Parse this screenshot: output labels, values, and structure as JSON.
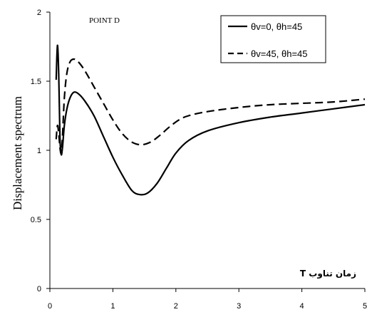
{
  "chart_data": {
    "type": "line",
    "title": "POINT  D",
    "xlabel": "T زمان تناوب",
    "ylabel": "Displacement spectrum",
    "xlim": [
      0,
      5
    ],
    "ylim": [
      0,
      2
    ],
    "x_ticks": [
      "0",
      "1",
      "2",
      "3",
      "4",
      "5"
    ],
    "y_ticks": [
      "0",
      "0.5",
      "1",
      "1.5",
      "2"
    ],
    "grid": false,
    "legend_position": "top-right",
    "series": [
      {
        "name": "θv=0, θh=45",
        "line_style": "solid",
        "color": "#000000",
        "points": [
          [
            0.1,
            1.51
          ],
          [
            0.12,
            1.76
          ],
          [
            0.14,
            1.55
          ],
          [
            0.16,
            1.1
          ],
          [
            0.18,
            0.97
          ],
          [
            0.2,
            1.02
          ],
          [
            0.23,
            1.18
          ],
          [
            0.27,
            1.3
          ],
          [
            0.32,
            1.38
          ],
          [
            0.38,
            1.42
          ],
          [
            0.45,
            1.41
          ],
          [
            0.55,
            1.36
          ],
          [
            0.7,
            1.25
          ],
          [
            0.85,
            1.1
          ],
          [
            1.0,
            0.95
          ],
          [
            1.15,
            0.82
          ],
          [
            1.3,
            0.71
          ],
          [
            1.42,
            0.68
          ],
          [
            1.55,
            0.69
          ],
          [
            1.7,
            0.76
          ],
          [
            1.85,
            0.87
          ],
          [
            2.0,
            0.98
          ],
          [
            2.2,
            1.07
          ],
          [
            2.5,
            1.14
          ],
          [
            3.0,
            1.2
          ],
          [
            3.5,
            1.24
          ],
          [
            4.0,
            1.27
          ],
          [
            4.5,
            1.3
          ],
          [
            5.0,
            1.33
          ]
        ]
      },
      {
        "name": "θv=45, θh=45",
        "line_style": "dashed",
        "color": "#000000",
        "points": [
          [
            0.1,
            1.08
          ],
          [
            0.12,
            1.18
          ],
          [
            0.14,
            1.12
          ],
          [
            0.16,
            1.02
          ],
          [
            0.18,
            0.98
          ],
          [
            0.2,
            1.1
          ],
          [
            0.23,
            1.38
          ],
          [
            0.27,
            1.56
          ],
          [
            0.32,
            1.64
          ],
          [
            0.38,
            1.66
          ],
          [
            0.45,
            1.64
          ],
          [
            0.55,
            1.58
          ],
          [
            0.7,
            1.46
          ],
          [
            0.85,
            1.34
          ],
          [
            1.0,
            1.22
          ],
          [
            1.15,
            1.12
          ],
          [
            1.3,
            1.06
          ],
          [
            1.45,
            1.04
          ],
          [
            1.6,
            1.06
          ],
          [
            1.75,
            1.11
          ],
          [
            1.9,
            1.17
          ],
          [
            2.05,
            1.22
          ],
          [
            2.2,
            1.25
          ],
          [
            2.5,
            1.28
          ],
          [
            3.0,
            1.31
          ],
          [
            3.5,
            1.33
          ],
          [
            4.0,
            1.34
          ],
          [
            4.5,
            1.35
          ],
          [
            5.0,
            1.37
          ]
        ]
      }
    ]
  }
}
